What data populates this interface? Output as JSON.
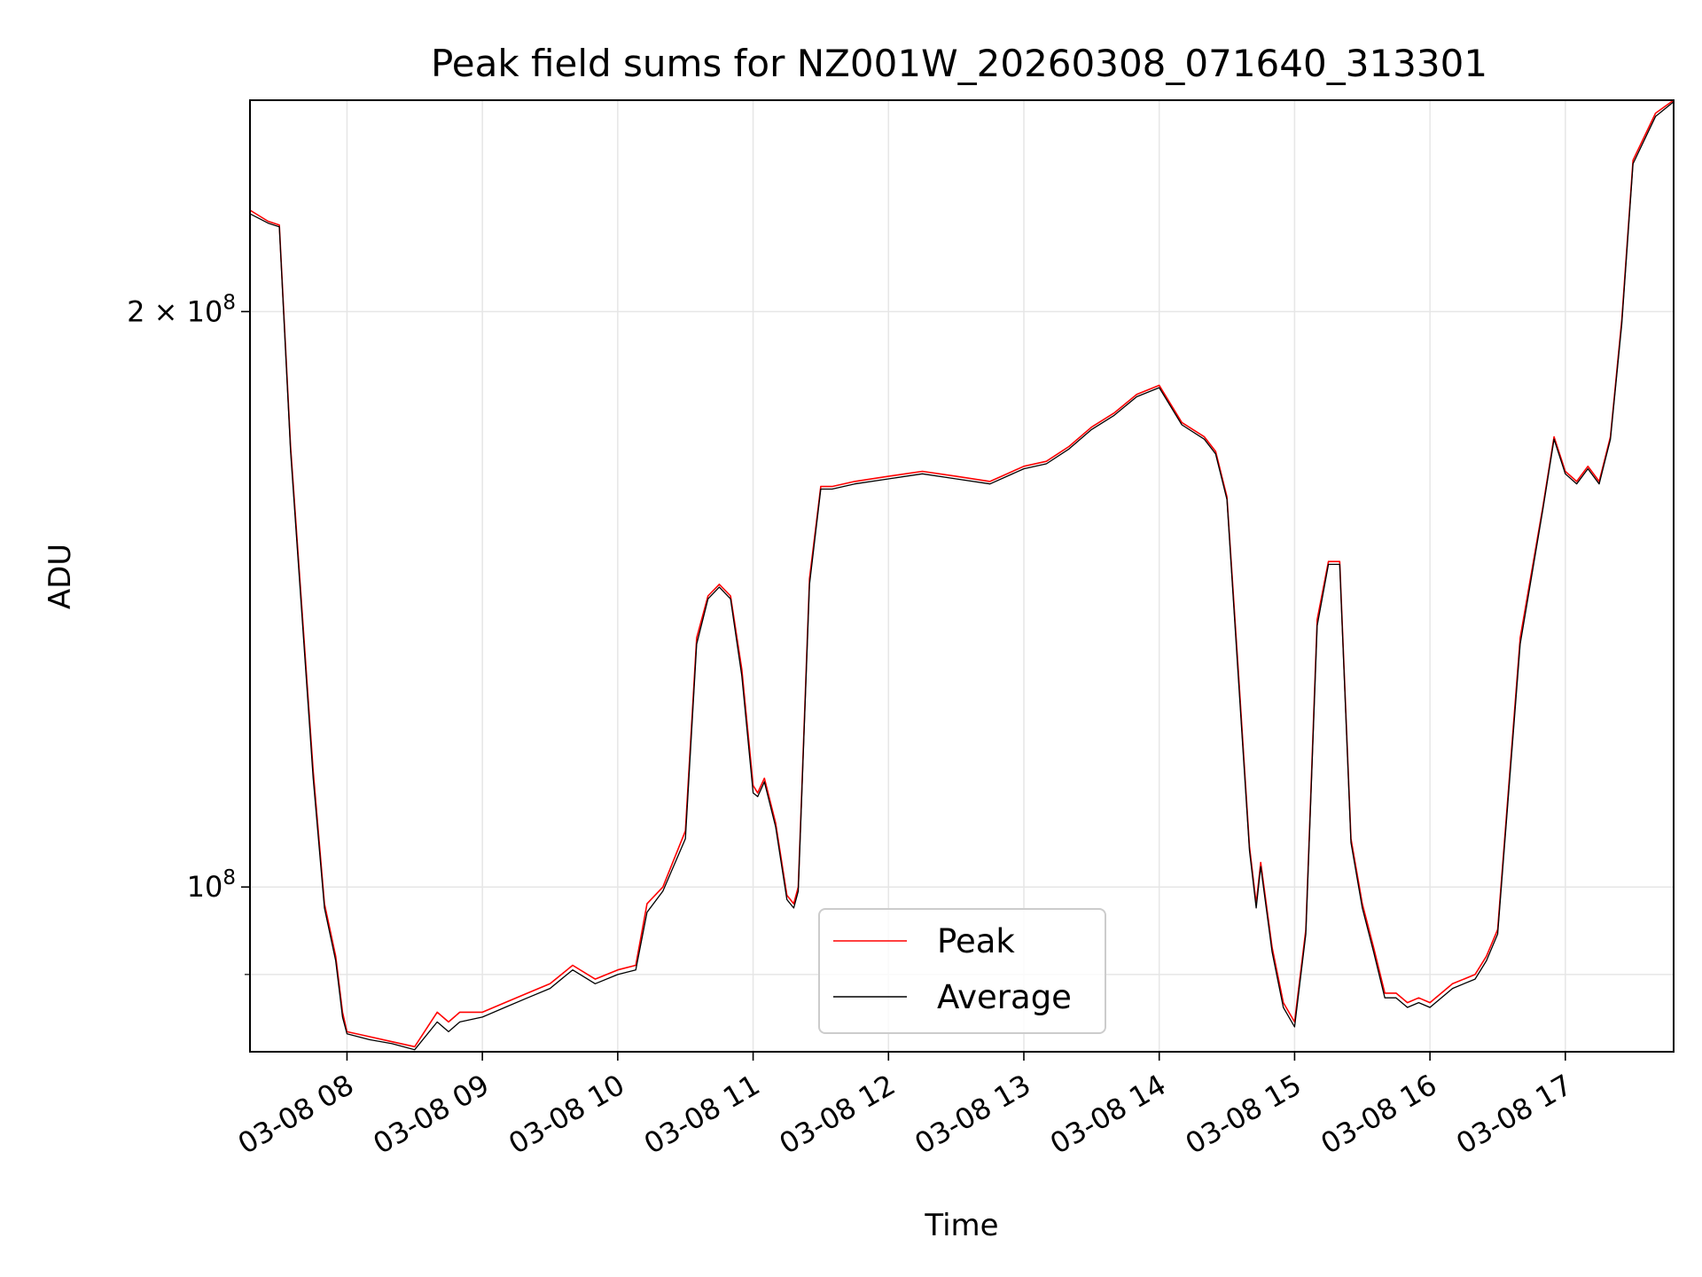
{
  "chart_data": {
    "type": "line",
    "title": "Peak field sums for NZ001W_20260308_071640_313301",
    "xlabel": "Time",
    "ylabel": "ADU",
    "y_scale": "log",
    "xlim": [
      "2026-03-08 07:17",
      "2026-03-08 17:48"
    ],
    "ylim": [
      82000000.0,
      258000000.0
    ],
    "grid": true,
    "legend_position": "lower center",
    "x_ticks": [
      {
        "label": "03-08 08",
        "x": "2026-03-08 08:00"
      },
      {
        "label": "03-08 09",
        "x": "2026-03-08 09:00"
      },
      {
        "label": "03-08 10",
        "x": "2026-03-08 10:00"
      },
      {
        "label": "03-08 11",
        "x": "2026-03-08 11:00"
      },
      {
        "label": "03-08 12",
        "x": "2026-03-08 12:00"
      },
      {
        "label": "03-08 13",
        "x": "2026-03-08 13:00"
      },
      {
        "label": "03-08 14",
        "x": "2026-03-08 14:00"
      },
      {
        "label": "03-08 15",
        "x": "2026-03-08 15:00"
      },
      {
        "label": "03-08 16",
        "x": "2026-03-08 16:00"
      },
      {
        "label": "03-08 17",
        "x": "2026-03-08 17:00"
      }
    ],
    "y_ticks": [
      {
        "value": 100000000,
        "base": "10",
        "exp": "8",
        "coef": ""
      },
      {
        "value": 200000000,
        "base": "10",
        "exp": "8",
        "coef": "2 × "
      }
    ],
    "y_minor_ticks": [
      90000000
    ],
    "series": [
      {
        "name": "Peak",
        "color": "#ff0000",
        "x": [
          "2026-03-08 07:17",
          "2026-03-08 07:25",
          "2026-03-08 07:30",
          "2026-03-08 07:35",
          "2026-03-08 07:40",
          "2026-03-08 07:45",
          "2026-03-08 07:50",
          "2026-03-08 07:55",
          "2026-03-08 07:58",
          "2026-03-08 08:00",
          "2026-03-08 08:10",
          "2026-03-08 08:20",
          "2026-03-08 08:30",
          "2026-03-08 08:40",
          "2026-03-08 08:45",
          "2026-03-08 08:50",
          "2026-03-08 09:00",
          "2026-03-08 09:10",
          "2026-03-08 09:20",
          "2026-03-08 09:30",
          "2026-03-08 09:40",
          "2026-03-08 09:50",
          "2026-03-08 10:00",
          "2026-03-08 10:08",
          "2026-03-08 10:13",
          "2026-03-08 10:20",
          "2026-03-08 10:30",
          "2026-03-08 10:35",
          "2026-03-08 10:40",
          "2026-03-08 10:45",
          "2026-03-08 10:50",
          "2026-03-08 10:55",
          "2026-03-08 11:00",
          "2026-03-08 11:02",
          "2026-03-08 11:05",
          "2026-03-08 11:10",
          "2026-03-08 11:15",
          "2026-03-08 11:18",
          "2026-03-08 11:20",
          "2026-03-08 11:25",
          "2026-03-08 11:30",
          "2026-03-08 11:35",
          "2026-03-08 11:45",
          "2026-03-08 12:00",
          "2026-03-08 12:15",
          "2026-03-08 12:30",
          "2026-03-08 12:45",
          "2026-03-08 13:00",
          "2026-03-08 13:10",
          "2026-03-08 13:20",
          "2026-03-08 13:30",
          "2026-03-08 13:40",
          "2026-03-08 13:50",
          "2026-03-08 14:00",
          "2026-03-08 14:10",
          "2026-03-08 14:20",
          "2026-03-08 14:25",
          "2026-03-08 14:30",
          "2026-03-08 14:35",
          "2026-03-08 14:40",
          "2026-03-08 14:43",
          "2026-03-08 14:45",
          "2026-03-08 14:50",
          "2026-03-08 14:55",
          "2026-03-08 15:00",
          "2026-03-08 15:05",
          "2026-03-08 15:10",
          "2026-03-08 15:15",
          "2026-03-08 15:20",
          "2026-03-08 15:25",
          "2026-03-08 15:30",
          "2026-03-08 15:35",
          "2026-03-08 15:40",
          "2026-03-08 15:45",
          "2026-03-08 15:50",
          "2026-03-08 15:55",
          "2026-03-08 16:00",
          "2026-03-08 16:10",
          "2026-03-08 16:20",
          "2026-03-08 16:25",
          "2026-03-08 16:30",
          "2026-03-08 16:40",
          "2026-03-08 16:50",
          "2026-03-08 16:55",
          "2026-03-08 17:00",
          "2026-03-08 17:05",
          "2026-03-08 17:10",
          "2026-03-08 17:15",
          "2026-03-08 17:20",
          "2026-03-08 17:25",
          "2026-03-08 17:30",
          "2026-03-08 17:40",
          "2026-03-08 17:48"
        ],
        "values": [
          226000000,
          223000000,
          222000000,
          170000000,
          140000000,
          115000000,
          98000000,
          92000000,
          86000000,
          84000000,
          83500000,
          83000000,
          82500000,
          86000000,
          85000000,
          86000000,
          86000000,
          87000000,
          88000000,
          89000000,
          91000000,
          89500000,
          90500000,
          91000000,
          98000000,
          100000000,
          107000000,
          135000000,
          142000000,
          144000000,
          142000000,
          130000000,
          113000000,
          112000000,
          114000000,
          108000000,
          99000000,
          98000000,
          100000000,
          145000000,
          162000000,
          162000000,
          163000000,
          164000000,
          165000000,
          164000000,
          163000000,
          166000000,
          167000000,
          170000000,
          174000000,
          177000000,
          181000000,
          183000000,
          175000000,
          172000000,
          169000000,
          160000000,
          130000000,
          105000000,
          98000000,
          103000000,
          93000000,
          87000000,
          85000000,
          95000000,
          138000000,
          148000000,
          148000000,
          106000000,
          98000000,
          93000000,
          88000000,
          88000000,
          87000000,
          87500000,
          87000000,
          89000000,
          90000000,
          92000000,
          95000000,
          135000000,
          158000000,
          172000000,
          165000000,
          163000000,
          166000000,
          163000000,
          172000000,
          198000000,
          240000000,
          254000000,
          258000000
        ]
      },
      {
        "name": "Average",
        "color": "#000000",
        "x": [
          "2026-03-08 07:17",
          "2026-03-08 07:25",
          "2026-03-08 07:30",
          "2026-03-08 07:35",
          "2026-03-08 07:40",
          "2026-03-08 07:45",
          "2026-03-08 07:50",
          "2026-03-08 07:55",
          "2026-03-08 07:58",
          "2026-03-08 08:00",
          "2026-03-08 08:10",
          "2026-03-08 08:20",
          "2026-03-08 08:30",
          "2026-03-08 08:40",
          "2026-03-08 08:45",
          "2026-03-08 08:50",
          "2026-03-08 09:00",
          "2026-03-08 09:10",
          "2026-03-08 09:20",
          "2026-03-08 09:30",
          "2026-03-08 09:40",
          "2026-03-08 09:50",
          "2026-03-08 10:00",
          "2026-03-08 10:08",
          "2026-03-08 10:13",
          "2026-03-08 10:20",
          "2026-03-08 10:30",
          "2026-03-08 10:35",
          "2026-03-08 10:40",
          "2026-03-08 10:45",
          "2026-03-08 10:50",
          "2026-03-08 10:55",
          "2026-03-08 11:00",
          "2026-03-08 11:02",
          "2026-03-08 11:05",
          "2026-03-08 11:10",
          "2026-03-08 11:15",
          "2026-03-08 11:18",
          "2026-03-08 11:20",
          "2026-03-08 11:25",
          "2026-03-08 11:30",
          "2026-03-08 11:35",
          "2026-03-08 11:45",
          "2026-03-08 12:00",
          "2026-03-08 12:15",
          "2026-03-08 12:30",
          "2026-03-08 12:45",
          "2026-03-08 13:00",
          "2026-03-08 13:10",
          "2026-03-08 13:20",
          "2026-03-08 13:30",
          "2026-03-08 13:40",
          "2026-03-08 13:50",
          "2026-03-08 14:00",
          "2026-03-08 14:10",
          "2026-03-08 14:20",
          "2026-03-08 14:25",
          "2026-03-08 14:30",
          "2026-03-08 14:35",
          "2026-03-08 14:40",
          "2026-03-08 14:43",
          "2026-03-08 14:45",
          "2026-03-08 14:50",
          "2026-03-08 14:55",
          "2026-03-08 15:00",
          "2026-03-08 15:05",
          "2026-03-08 15:10",
          "2026-03-08 15:15",
          "2026-03-08 15:20",
          "2026-03-08 15:25",
          "2026-03-08 15:30",
          "2026-03-08 15:35",
          "2026-03-08 15:40",
          "2026-03-08 15:45",
          "2026-03-08 15:50",
          "2026-03-08 15:55",
          "2026-03-08 16:00",
          "2026-03-08 16:10",
          "2026-03-08 16:20",
          "2026-03-08 16:25",
          "2026-03-08 16:30",
          "2026-03-08 16:40",
          "2026-03-08 16:50",
          "2026-03-08 16:55",
          "2026-03-08 17:00",
          "2026-03-08 17:05",
          "2026-03-08 17:10",
          "2026-03-08 17:15",
          "2026-03-08 17:20",
          "2026-03-08 17:25",
          "2026-03-08 17:30",
          "2026-03-08 17:40",
          "2026-03-08 17:48"
        ],
        "values": [
          225000000,
          222500000,
          221500000,
          169000000,
          139000000,
          114000000,
          97500000,
          91500000,
          85500000,
          83800000,
          83200000,
          82800000,
          82200000,
          85000000,
          84000000,
          85000000,
          85500000,
          86500000,
          87500000,
          88500000,
          90500000,
          89000000,
          90000000,
          90500000,
          97000000,
          99500000,
          106000000,
          134000000,
          141500000,
          143500000,
          141500000,
          129000000,
          112000000,
          111500000,
          113500000,
          107500000,
          98500000,
          97500000,
          99500000,
          144000000,
          161500000,
          161500000,
          162500000,
          163500000,
          164500000,
          163500000,
          162500000,
          165500000,
          166500000,
          169500000,
          173500000,
          176500000,
          180500000,
          182500000,
          174500000,
          171500000,
          168500000,
          159500000,
          129000000,
          104500000,
          97500000,
          102500000,
          92500000,
          86500000,
          84500000,
          94500000,
          137000000,
          147500000,
          147500000,
          105500000,
          97500000,
          92500000,
          87500000,
          87500000,
          86500000,
          87000000,
          86500000,
          88500000,
          89500000,
          91500000,
          94500000,
          134000000,
          157500000,
          171500000,
          164500000,
          162500000,
          165500000,
          162500000,
          171500000,
          197000000,
          239000000,
          253000000,
          257500000
        ]
      }
    ]
  }
}
